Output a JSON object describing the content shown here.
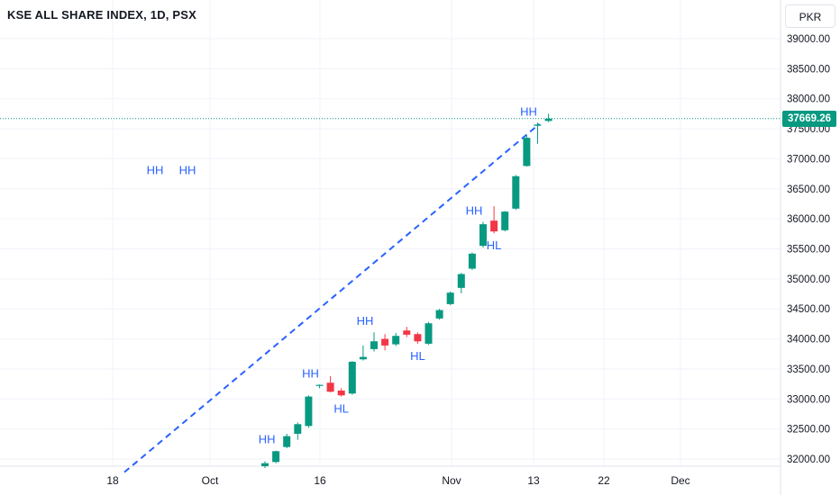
{
  "header": {
    "title": "KSE ALL SHARE INDEX, 1D, PSX"
  },
  "currency_button": {
    "label": "PKR"
  },
  "colors": {
    "up": "#089981",
    "down": "#f23645",
    "annotation": "#2962ff",
    "grid": "#f0f3fa",
    "text": "#131722"
  },
  "chart_data": {
    "type": "candlestick",
    "title": "KSE ALL SHARE INDEX, 1D, PSX",
    "y_axis": {
      "ticks": [
        "39000.00",
        "38500.00",
        "38000.00",
        "37500.00",
        "37000.00",
        "36500.00",
        "36000.00",
        "35500.00",
        "35000.00",
        "34500.00",
        "34000.00",
        "33500.00",
        "33000.00",
        "32500.00",
        "32000.00"
      ],
      "range": [
        31900,
        39300
      ]
    },
    "x_axis": {
      "ticks": [
        "18",
        "Oct",
        "16",
        "Nov",
        "13",
        "22",
        "Dec"
      ]
    },
    "last_price": "37669.26",
    "candles": [
      {
        "o": 31880,
        "h": 31960,
        "l": 31850,
        "c": 31930
      },
      {
        "o": 31950,
        "h": 32140,
        "l": 31930,
        "c": 32130
      },
      {
        "o": 32200,
        "h": 32420,
        "l": 32180,
        "c": 32380
      },
      {
        "o": 32420,
        "h": 32610,
        "l": 32320,
        "c": 32580
      },
      {
        "o": 32550,
        "h": 33060,
        "l": 32520,
        "c": 33040
      },
      {
        "o": 33220,
        "h": 33240,
        "l": 33180,
        "c": 33235
      },
      {
        "o": 33270,
        "h": 33380,
        "l": 33110,
        "c": 33120
      },
      {
        "o": 33140,
        "h": 33180,
        "l": 33040,
        "c": 33060
      },
      {
        "o": 33090,
        "h": 33630,
        "l": 33070,
        "c": 33620
      },
      {
        "o": 33660,
        "h": 33890,
        "l": 33640,
        "c": 33700
      },
      {
        "o": 33830,
        "h": 34110,
        "l": 33790,
        "c": 33960
      },
      {
        "o": 34000,
        "h": 34080,
        "l": 33810,
        "c": 33890
      },
      {
        "o": 33910,
        "h": 34100,
        "l": 33880,
        "c": 34050
      },
      {
        "o": 34140,
        "h": 34200,
        "l": 34030,
        "c": 34070
      },
      {
        "o": 34080,
        "h": 34110,
        "l": 33920,
        "c": 33960
      },
      {
        "o": 33920,
        "h": 34280,
        "l": 33900,
        "c": 34260
      },
      {
        "o": 34340,
        "h": 34500,
        "l": 34320,
        "c": 34480
      },
      {
        "o": 34580,
        "h": 34790,
        "l": 34560,
        "c": 34770
      },
      {
        "o": 34850,
        "h": 35100,
        "l": 34760,
        "c": 35080
      },
      {
        "o": 35170,
        "h": 35440,
        "l": 35150,
        "c": 35420
      },
      {
        "o": 35550,
        "h": 35950,
        "l": 35520,
        "c": 35910
      },
      {
        "o": 35970,
        "h": 36210,
        "l": 35760,
        "c": 35790
      },
      {
        "o": 35810,
        "h": 36130,
        "l": 35790,
        "c": 36120
      },
      {
        "o": 36170,
        "h": 36730,
        "l": 36150,
        "c": 36710
      },
      {
        "o": 36880,
        "h": 37400,
        "l": 36870,
        "c": 37350
      },
      {
        "o": 37550,
        "h": 37600,
        "l": 37250,
        "c": 37570
      },
      {
        "o": 37630,
        "h": 37750,
        "l": 37610,
        "c": 37669.26
      }
    ],
    "annotations": [
      {
        "text": "HH",
        "candle": 1,
        "pos": "above"
      },
      {
        "text": "HH",
        "candle": 5,
        "pos": "above"
      },
      {
        "text": "HL",
        "candle": 7,
        "pos": "below"
      },
      {
        "text": "HH",
        "candle": 10,
        "pos": "above"
      },
      {
        "text": "HL",
        "candle": 14,
        "pos": "below"
      },
      {
        "text": "HH",
        "candle": 20,
        "pos": "above"
      },
      {
        "text": "HL",
        "candle": 21,
        "pos": "below"
      },
      {
        "text": "HH",
        "candle": 25,
        "pos": "above"
      },
      {
        "text": "HH",
        "free": true,
        "price": 36820,
        "slot": 0
      },
      {
        "text": "HH",
        "free": true,
        "price": 36820,
        "slot": 1
      }
    ],
    "trend_line": {
      "style": "dashed",
      "from_price": 31900,
      "to_price": 37580
    },
    "grid": true
  }
}
